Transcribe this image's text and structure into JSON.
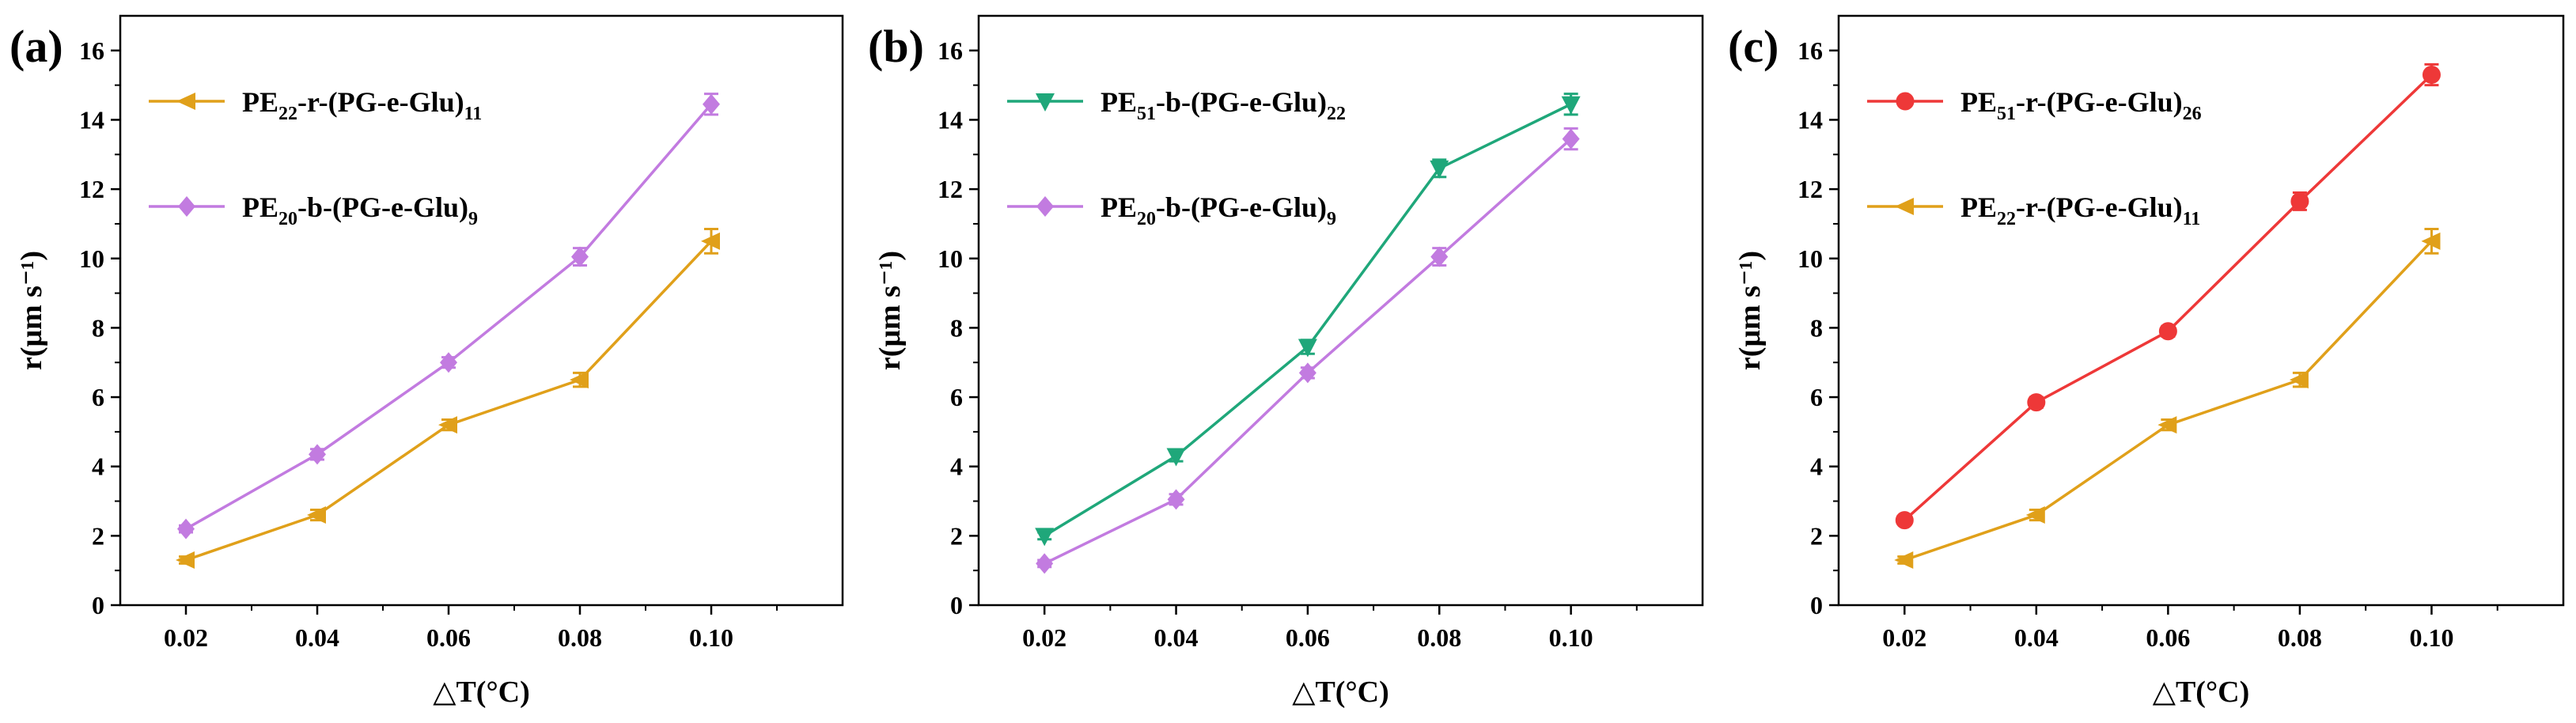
{
  "chart_data": [
    {
      "type": "line",
      "panel_label": "(a)",
      "xlabel": "△T(°C)",
      "ylabel": "r(μm s⁻¹)",
      "ylim": [
        0,
        17
      ],
      "yticks": [
        0,
        2,
        4,
        6,
        8,
        10,
        12,
        14,
        16
      ],
      "xlim": [
        0.01,
        0.12
      ],
      "xticks": [
        "0.02",
        "0.04",
        "0.06",
        "0.08",
        "0.10"
      ],
      "legend_location": "top-left",
      "series": [
        {
          "name": "PE22-r-(PG-e-Glu)11",
          "legend": {
            "base": "PE",
            "sub1": "22",
            "mid": "-r-(PG-e-Glu)",
            "sub2": "11"
          },
          "color": "#E0A01A",
          "marker": "triangle-left",
          "x": [
            0.02,
            0.04,
            0.06,
            0.08,
            0.1
          ],
          "values": [
            1.3,
            2.6,
            5.2,
            6.5,
            10.5
          ],
          "errors": [
            0.1,
            0.15,
            0.15,
            0.2,
            0.35
          ]
        },
        {
          "name": "PE20-b-(PG-e-Glu)9",
          "legend": {
            "base": "PE",
            "sub1": "20",
            "mid": "-b-(PG-e-Glu)",
            "sub2": "9"
          },
          "color": "#C27BE0",
          "marker": "diamond",
          "x": [
            0.02,
            0.04,
            0.06,
            0.08,
            0.1
          ],
          "values": [
            2.2,
            4.35,
            7.0,
            10.05,
            14.45
          ],
          "errors": [
            0.1,
            0.15,
            0.15,
            0.25,
            0.3
          ]
        }
      ]
    },
    {
      "type": "line",
      "panel_label": "(b)",
      "xlabel": "△T(°C)",
      "ylabel": "r(μm s⁻¹)",
      "ylim": [
        0,
        17
      ],
      "yticks": [
        0,
        2,
        4,
        6,
        8,
        10,
        12,
        14,
        16
      ],
      "xlim": [
        0.01,
        0.12
      ],
      "xticks": [
        "0.02",
        "0.04",
        "0.06",
        "0.08",
        "0.10"
      ],
      "legend_location": "top-left",
      "series": [
        {
          "name": "PE51-b-(PG-e-Glu)22",
          "legend": {
            "base": "PE",
            "sub1": "51",
            "mid": "-b-(PG-e-Glu)",
            "sub2": "22"
          },
          "color": "#1FA77A",
          "marker": "triangle-down",
          "x": [
            0.02,
            0.04,
            0.06,
            0.08,
            0.1
          ],
          "values": [
            2.0,
            4.3,
            7.45,
            12.6,
            14.45
          ],
          "errors": [
            0.1,
            0.15,
            0.2,
            0.25,
            0.3
          ]
        },
        {
          "name": "PE20-b-(PG-e-Glu)9",
          "legend": {
            "base": "PE",
            "sub1": "20",
            "mid": "-b-(PG-e-Glu)",
            "sub2": "9"
          },
          "color": "#C27BE0",
          "marker": "diamond",
          "x": [
            0.02,
            0.04,
            0.06,
            0.08,
            0.1
          ],
          "values": [
            1.2,
            3.05,
            6.7,
            10.05,
            13.45
          ],
          "errors": [
            0.1,
            0.15,
            0.15,
            0.25,
            0.3
          ]
        }
      ]
    },
    {
      "type": "line",
      "panel_label": "(c)",
      "xlabel": "△T(°C)",
      "ylabel": "r(μm s⁻¹)",
      "ylim": [
        0,
        17
      ],
      "yticks": [
        0,
        2,
        4,
        6,
        8,
        10,
        12,
        14,
        16
      ],
      "xlim": [
        0.01,
        0.12
      ],
      "xticks": [
        "0.02",
        "0.04",
        "0.06",
        "0.08",
        "0.10"
      ],
      "legend_location": "top-left",
      "series": [
        {
          "name": "PE51-r-(PG-e-Glu)26",
          "legend": {
            "base": "PE",
            "sub1": "51",
            "mid": "-r-(PG-e-Glu)",
            "sub2": "26"
          },
          "color": "#EE3838",
          "marker": "circle",
          "x": [
            0.02,
            0.04,
            0.06,
            0.08,
            0.1
          ],
          "values": [
            2.45,
            5.85,
            7.9,
            11.65,
            15.3
          ],
          "errors": [
            0.1,
            0.15,
            0.15,
            0.25,
            0.3
          ]
        },
        {
          "name": "PE22-r-(PG-e-Glu)11",
          "legend": {
            "base": "PE",
            "sub1": "22",
            "mid": "-r-(PG-e-Glu)",
            "sub2": "11"
          },
          "color": "#E0A01A",
          "marker": "triangle-left",
          "x": [
            0.02,
            0.04,
            0.06,
            0.08,
            0.1
          ],
          "values": [
            1.3,
            2.6,
            5.2,
            6.5,
            10.5
          ],
          "errors": [
            0.1,
            0.15,
            0.15,
            0.2,
            0.35
          ]
        }
      ]
    }
  ]
}
